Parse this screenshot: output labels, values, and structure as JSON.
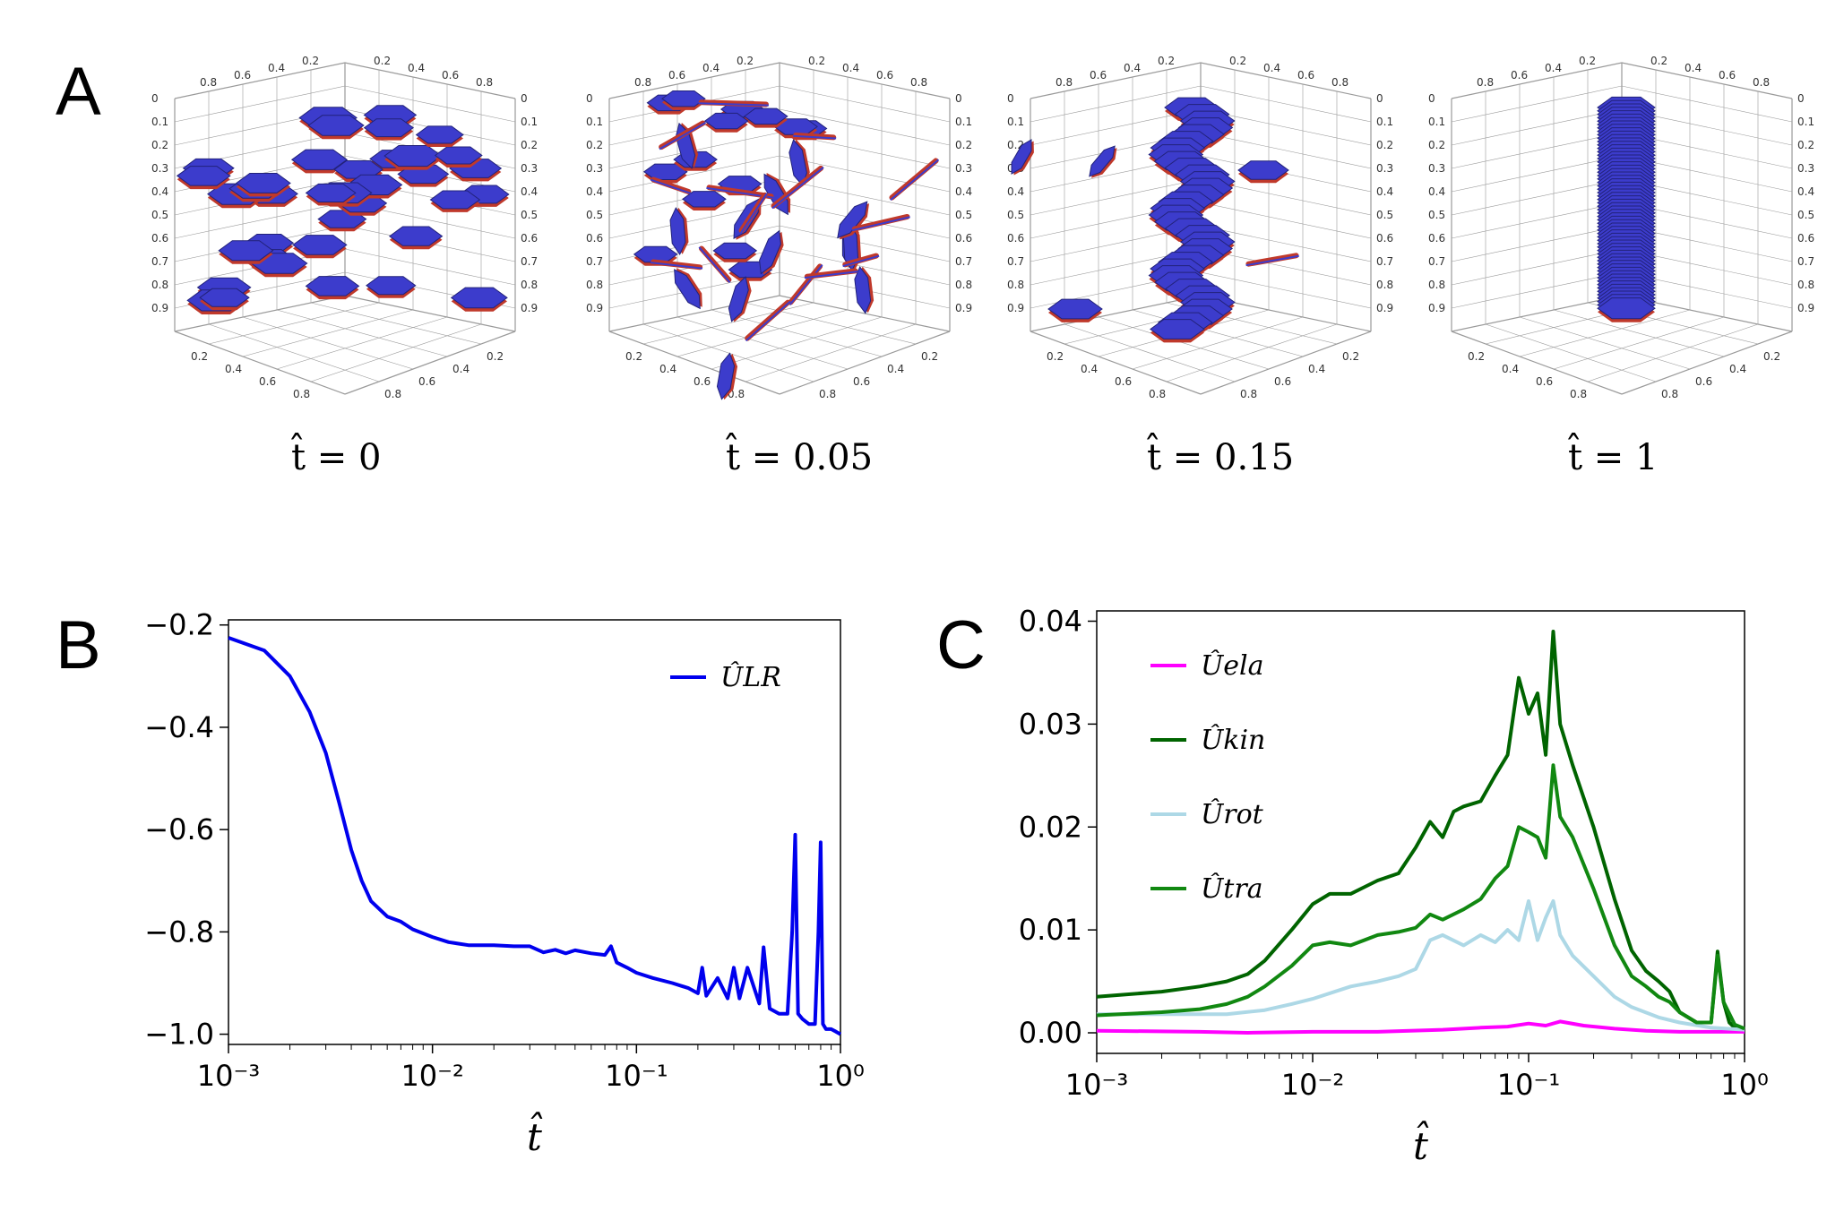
{
  "panels": {
    "a": "A",
    "b": "B",
    "c": "C"
  },
  "snapshots": [
    {
      "label": "t̂ = 0",
      "t": 0,
      "state": "dispersed"
    },
    {
      "label": "t̂ = 0.05",
      "t": 0.05,
      "state": "aggregating"
    },
    {
      "label": "t̂ = 0.15",
      "t": 0.15,
      "state": "stacking"
    },
    {
      "label": "t̂ = 1",
      "t": 1,
      "state": "single stack"
    }
  ],
  "cube_ticks": [
    "0",
    "0.1",
    "0.2",
    "0.3",
    "0.4",
    "0.5",
    "0.6",
    "0.7",
    "0.8",
    "0.9"
  ],
  "cube_edge_ticks": [
    "0.2",
    "0.4",
    "0.6",
    "0.8"
  ],
  "colors": {
    "platelet_face": "#3c3ccc",
    "platelet_edge": "#c0392b",
    "u_lr": "#0000ee",
    "u_ela": "#ff00ff",
    "u_kin": "#006400",
    "u_rot": "#add8e6",
    "u_tra": "#118811"
  },
  "chart_data": [
    {
      "type": "line",
      "panel": "B",
      "xlabel": "t̂",
      "ylabel": "",
      "xscale": "log",
      "xlim": [
        0.001,
        1
      ],
      "ylim": [
        -1.02,
        -0.19
      ],
      "xticks": [
        "10⁻³",
        "10⁻²",
        "10⁻¹",
        "10⁰"
      ],
      "yticks": [
        "−0.2",
        "−0.4",
        "−0.6",
        "−0.8",
        "−1.0"
      ],
      "legend_position": "top-right",
      "series": [
        {
          "name": "ÛLR",
          "x": [
            0.001,
            0.0015,
            0.002,
            0.0025,
            0.003,
            0.0035,
            0.004,
            0.0045,
            0.005,
            0.006,
            0.007,
            0.008,
            0.01,
            0.012,
            0.015,
            0.02,
            0.025,
            0.03,
            0.035,
            0.04,
            0.045,
            0.05,
            0.06,
            0.07,
            0.075,
            0.08,
            0.09,
            0.1,
            0.12,
            0.15,
            0.18,
            0.2,
            0.21,
            0.22,
            0.25,
            0.28,
            0.3,
            0.32,
            0.35,
            0.4,
            0.42,
            0.45,
            0.5,
            0.55,
            0.58,
            0.6,
            0.62,
            0.65,
            0.7,
            0.75,
            0.78,
            0.8,
            0.82,
            0.85,
            0.9,
            0.95,
            1.0
          ],
          "y": [
            -0.225,
            -0.25,
            -0.3,
            -0.37,
            -0.45,
            -0.55,
            -0.64,
            -0.7,
            -0.74,
            -0.77,
            -0.78,
            -0.795,
            -0.81,
            -0.82,
            -0.826,
            -0.826,
            -0.828,
            -0.828,
            -0.84,
            -0.835,
            -0.842,
            -0.836,
            -0.842,
            -0.845,
            -0.828,
            -0.86,
            -0.87,
            -0.88,
            -0.89,
            -0.9,
            -0.91,
            -0.92,
            -0.87,
            -0.925,
            -0.89,
            -0.93,
            -0.87,
            -0.93,
            -0.87,
            -0.94,
            -0.83,
            -0.95,
            -0.96,
            -0.96,
            -0.8,
            -0.61,
            -0.96,
            -0.97,
            -0.98,
            -0.98,
            -0.8,
            -0.625,
            -0.98,
            -0.99,
            -0.99,
            -0.995,
            -1.0
          ]
        }
      ]
    },
    {
      "type": "line",
      "panel": "C",
      "xlabel": "t̂",
      "ylabel": "",
      "xscale": "log",
      "xlim": [
        0.001,
        1
      ],
      "ylim": [
        -0.002,
        0.041
      ],
      "xticks": [
        "10⁻³",
        "10⁻²",
        "10⁻¹",
        "10⁰"
      ],
      "yticks": [
        "0.00",
        "0.01",
        "0.02",
        "0.03",
        "0.04"
      ],
      "legend_position": "top-left",
      "series": [
        {
          "name": "Ûela",
          "x": [
            0.001,
            0.003,
            0.005,
            0.01,
            0.02,
            0.04,
            0.06,
            0.08,
            0.1,
            0.12,
            0.14,
            0.18,
            0.25,
            0.35,
            0.5,
            0.7,
            1.0
          ],
          "y": [
            0.0002,
            0.0001,
            0.0,
            0.0001,
            0.0001,
            0.0003,
            0.0005,
            0.0006,
            0.0009,
            0.0007,
            0.0011,
            0.0007,
            0.0004,
            0.0002,
            0.0001,
            0.0001,
            0.0001
          ]
        },
        {
          "name": "Ûkin",
          "x": [
            0.001,
            0.002,
            0.003,
            0.004,
            0.005,
            0.006,
            0.008,
            0.01,
            0.012,
            0.015,
            0.02,
            0.025,
            0.03,
            0.035,
            0.04,
            0.045,
            0.05,
            0.06,
            0.07,
            0.08,
            0.09,
            0.1,
            0.11,
            0.12,
            0.13,
            0.14,
            0.16,
            0.2,
            0.25,
            0.3,
            0.35,
            0.4,
            0.45,
            0.5,
            0.6,
            0.7,
            0.75,
            0.8,
            0.85,
            0.9,
            1.0
          ],
          "y": [
            0.0035,
            0.004,
            0.0045,
            0.005,
            0.0057,
            0.007,
            0.01,
            0.0125,
            0.0135,
            0.0135,
            0.0148,
            0.0155,
            0.018,
            0.0205,
            0.019,
            0.0215,
            0.022,
            0.0225,
            0.025,
            0.027,
            0.0345,
            0.031,
            0.033,
            0.027,
            0.039,
            0.03,
            0.026,
            0.02,
            0.013,
            0.008,
            0.006,
            0.005,
            0.004,
            0.002,
            0.001,
            0.001,
            0.0079,
            0.003,
            0.001,
            0.0005,
            0.0003
          ]
        },
        {
          "name": "Ûrot",
          "x": [
            0.001,
            0.002,
            0.004,
            0.006,
            0.008,
            0.01,
            0.015,
            0.02,
            0.025,
            0.03,
            0.035,
            0.04,
            0.05,
            0.06,
            0.07,
            0.08,
            0.09,
            0.1,
            0.11,
            0.12,
            0.13,
            0.14,
            0.16,
            0.2,
            0.25,
            0.3,
            0.4,
            0.5,
            0.7,
            1.0
          ],
          "y": [
            0.0018,
            0.0018,
            0.0018,
            0.0022,
            0.0028,
            0.0033,
            0.0045,
            0.005,
            0.0055,
            0.0062,
            0.009,
            0.0095,
            0.0085,
            0.0095,
            0.0088,
            0.01,
            0.009,
            0.0128,
            0.009,
            0.0112,
            0.0128,
            0.0095,
            0.0075,
            0.0055,
            0.0035,
            0.0025,
            0.0015,
            0.001,
            0.0005,
            0.0003
          ]
        },
        {
          "name": "Ûtra",
          "x": [
            0.001,
            0.002,
            0.003,
            0.004,
            0.005,
            0.006,
            0.008,
            0.01,
            0.012,
            0.015,
            0.02,
            0.025,
            0.03,
            0.035,
            0.04,
            0.05,
            0.06,
            0.07,
            0.08,
            0.09,
            0.1,
            0.11,
            0.12,
            0.13,
            0.14,
            0.16,
            0.2,
            0.25,
            0.3,
            0.35,
            0.4,
            0.45,
            0.5,
            0.6,
            0.7,
            0.75,
            0.8,
            0.9,
            1.0
          ],
          "y": [
            0.0017,
            0.002,
            0.0023,
            0.0028,
            0.0035,
            0.0045,
            0.0065,
            0.0085,
            0.0088,
            0.0085,
            0.0095,
            0.0098,
            0.0102,
            0.0115,
            0.011,
            0.012,
            0.013,
            0.015,
            0.0162,
            0.02,
            0.0195,
            0.019,
            0.017,
            0.026,
            0.021,
            0.019,
            0.014,
            0.0085,
            0.0055,
            0.0045,
            0.0035,
            0.003,
            0.002,
            0.001,
            0.001,
            0.0075,
            0.003,
            0.0008,
            0.0004
          ]
        }
      ]
    }
  ]
}
